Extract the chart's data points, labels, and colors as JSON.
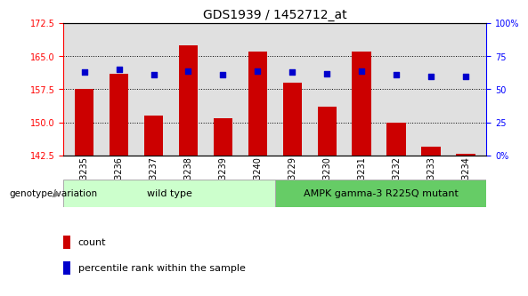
{
  "title": "GDS1939 / 1452712_at",
  "samples": [
    "GSM93235",
    "GSM93236",
    "GSM93237",
    "GSM93238",
    "GSM93239",
    "GSM93240",
    "GSM93229",
    "GSM93230",
    "GSM93231",
    "GSM93232",
    "GSM93233",
    "GSM93234"
  ],
  "count_values": [
    157.5,
    161.0,
    151.5,
    167.5,
    151.0,
    166.0,
    159.0,
    153.5,
    166.0,
    150.0,
    144.5,
    142.8
  ],
  "percentile_values": [
    63,
    65,
    61,
    64,
    61,
    64,
    63,
    62,
    64,
    61,
    60,
    60
  ],
  "ylim_left": [
    142.5,
    172.5
  ],
  "yticks_left": [
    142.5,
    150.0,
    157.5,
    165.0,
    172.5
  ],
  "ylim_right": [
    0,
    100
  ],
  "yticks_right": [
    0,
    25,
    50,
    75,
    100
  ],
  "ytick_right_labels": [
    "0%",
    "25",
    "50",
    "75",
    "100%"
  ],
  "bar_color": "#cc0000",
  "dot_color": "#0000cc",
  "bar_bottom": 142.5,
  "grid_lines": [
    150.0,
    157.5,
    165.0
  ],
  "wild_type_label": "wild type",
  "mutant_label": "AMPK gamma-3 R225Q mutant",
  "wild_type_color": "#ccffcc",
  "mutant_color": "#66cc66",
  "genotype_label": "genotype/variation",
  "legend_count_label": "count",
  "legend_percentile_label": "percentile rank within the sample",
  "bg_color": "#ffffff",
  "plot_bg_color": "#e0e0e0",
  "bar_width": 0.55,
  "title_fontsize": 10,
  "tick_fontsize": 7,
  "label_fontsize": 8,
  "legend_fontsize": 8
}
